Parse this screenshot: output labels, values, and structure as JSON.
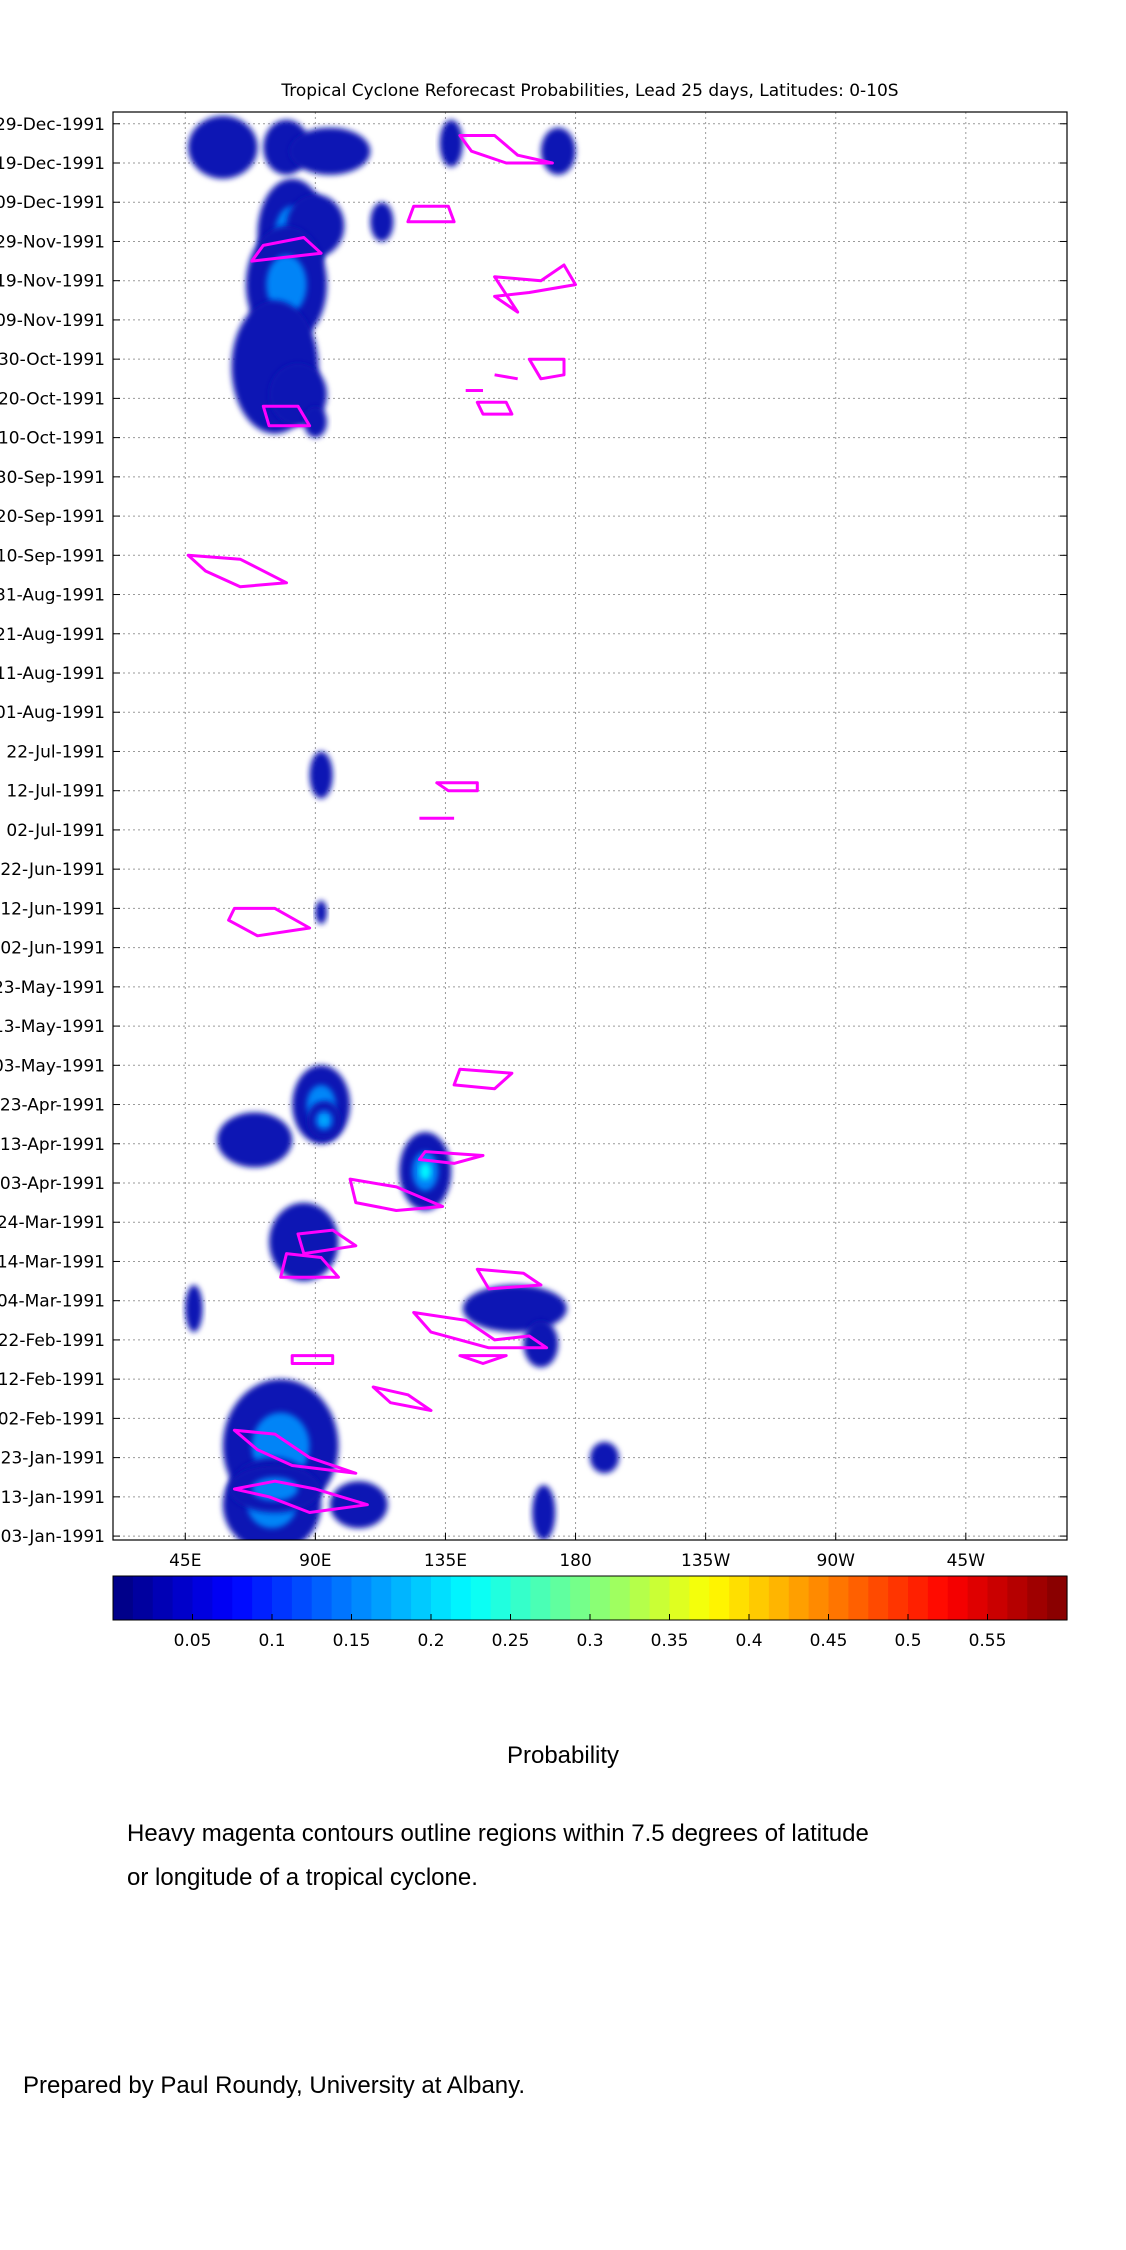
{
  "chart_data": {
    "type": "heatmap",
    "title": "Tropical Cyclone Reforecast Probabilities, Lead 25 days, Latitudes: 0-10S",
    "x_ticks": [
      "45E",
      "90E",
      "135E",
      "180",
      "135W",
      "90W",
      "45W"
    ],
    "x_tick_lon": [
      45,
      90,
      135,
      180,
      225,
      270,
      315
    ],
    "xlim": [
      20,
      350
    ],
    "y_ticks": [
      "29-Dec-1991",
      "19-Dec-1991",
      "09-Dec-1991",
      "29-Nov-1991",
      "19-Nov-1991",
      "09-Nov-1991",
      "30-Oct-1991",
      "20-Oct-1991",
      "10-Oct-1991",
      "30-Sep-1991",
      "20-Sep-1991",
      "10-Sep-1991",
      "31-Aug-1991",
      "21-Aug-1991",
      "11-Aug-1991",
      "01-Aug-1991",
      "22-Jul-1991",
      "12-Jul-1991",
      "02-Jul-1991",
      "22-Jun-1991",
      "12-Jun-1991",
      "02-Jun-1991",
      "23-May-1991",
      "13-May-1991",
      "03-May-1991",
      "23-Apr-1991",
      "13-Apr-1991",
      "03-Apr-1991",
      "24-Mar-1991",
      "14-Mar-1991",
      "04-Mar-1991",
      "22-Feb-1991",
      "12-Feb-1991",
      "02-Feb-1991",
      "23-Jan-1991",
      "13-Jan-1991",
      "03-Jan-1991"
    ],
    "ylim": [
      "02-Jan-1991",
      "01-Jan-1992"
    ],
    "grid": true,
    "colorbar": {
      "label": "Probability",
      "ticks": [
        "0.05",
        "0.1",
        "0.15",
        "0.2",
        "0.25",
        "0.3",
        "0.35",
        "0.4",
        "0.45",
        "0.5",
        "0.55"
      ],
      "range": [
        0,
        0.6
      ],
      "colormap": "jet"
    },
    "probability_regions": [
      {
        "lon": 58,
        "day": 356,
        "dlon": 12,
        "ddays": 8,
        "peak": 0.07
      },
      {
        "lon": 80,
        "day": 356,
        "dlon": 8,
        "ddays": 7,
        "peak": 0.06
      },
      {
        "lon": 95,
        "day": 355,
        "dlon": 14,
        "ddays": 6,
        "peak": 0.05
      },
      {
        "lon": 137,
        "day": 357,
        "dlon": 4,
        "ddays": 6,
        "peak": 0.04
      },
      {
        "lon": 174,
        "day": 355,
        "dlon": 6,
        "ddays": 6,
        "peak": 0.05
      },
      {
        "lon": 82,
        "day": 334,
        "dlon": 12,
        "ddays": 14,
        "peak": 0.1
      },
      {
        "lon": 90,
        "day": 336,
        "dlon": 10,
        "ddays": 8,
        "peak": 0.08
      },
      {
        "lon": 80,
        "day": 321,
        "dlon": 14,
        "ddays": 15,
        "peak": 0.14
      },
      {
        "lon": 76,
        "day": 300,
        "dlon": 15,
        "ddays": 17,
        "peak": 0.08
      },
      {
        "lon": 84,
        "day": 293,
        "dlon": 10,
        "ddays": 8,
        "peak": 0.06
      },
      {
        "lon": 90,
        "day": 286,
        "dlon": 4,
        "ddays": 4,
        "peak": 0.05
      },
      {
        "lon": 113,
        "day": 337,
        "dlon": 4,
        "ddays": 5,
        "peak": 0.05
      },
      {
        "lon": 92,
        "day": 196,
        "dlon": 4,
        "ddays": 6,
        "peak": 0.05
      },
      {
        "lon": 92,
        "day": 161,
        "dlon": 2,
        "ddays": 3,
        "peak": 0.05
      },
      {
        "lon": 69,
        "day": 103,
        "dlon": 13,
        "ddays": 7,
        "peak": 0.06
      },
      {
        "lon": 92,
        "day": 112,
        "dlon": 10,
        "ddays": 10,
        "peak": 0.16
      },
      {
        "lon": 93,
        "day": 108,
        "dlon": 6,
        "ddays": 5,
        "peak": 0.18
      },
      {
        "lon": 128,
        "day": 95,
        "dlon": 9,
        "ddays": 10,
        "peak": 0.22
      },
      {
        "lon": 86,
        "day": 77,
        "dlon": 12,
        "ddays": 10,
        "peak": 0.08
      },
      {
        "lon": 159,
        "day": 60,
        "dlon": 18,
        "ddays": 6,
        "peak": 0.07
      },
      {
        "lon": 168,
        "day": 51,
        "dlon": 6,
        "ddays": 6,
        "peak": 0.05
      },
      {
        "lon": 48,
        "day": 60,
        "dlon": 3,
        "ddays": 6,
        "peak": 0.05
      },
      {
        "lon": 78,
        "day": 25,
        "dlon": 20,
        "ddays": 17,
        "peak": 0.1
      },
      {
        "lon": 75,
        "day": 10,
        "dlon": 17,
        "ddays": 12,
        "peak": 0.14
      },
      {
        "lon": 76,
        "day": 14,
        "dlon": 16,
        "ddays": 6,
        "peak": 0.12
      },
      {
        "lon": 105,
        "day": 10,
        "dlon": 10,
        "ddays": 6,
        "peak": 0.06
      },
      {
        "lon": 169,
        "day": 8,
        "dlon": 4,
        "ddays": 7,
        "peak": 0.05
      },
      {
        "lon": 190,
        "day": 22,
        "dlon": 5,
        "ddays": 4,
        "peak": 0.06
      }
    ],
    "cyclone_contours": [
      [
        [
          140,
          359
        ],
        [
          152,
          359
        ],
        [
          160,
          354
        ],
        [
          172,
          352
        ],
        [
          156,
          352
        ],
        [
          144,
          355
        ]
      ],
      [
        [
          124,
          341
        ],
        [
          136,
          341
        ],
        [
          138,
          337
        ],
        [
          122,
          337
        ]
      ],
      [
        [
          72,
          331
        ],
        [
          86,
          333
        ],
        [
          92,
          329
        ],
        [
          68,
          327
        ]
      ],
      [
        [
          152,
          323
        ],
        [
          168,
          322
        ],
        [
          176,
          326
        ],
        [
          180,
          321
        ],
        [
          164,
          319
        ],
        [
          152,
          318
        ],
        [
          160,
          314
        ]
      ],
      [
        [
          164,
          302
        ],
        [
          176,
          302
        ],
        [
          176,
          298
        ],
        [
          168,
          297
        ]
      ],
      [
        [
          152,
          298
        ],
        [
          160,
          297
        ]
      ],
      [
        [
          142,
          294
        ],
        [
          148,
          294
        ]
      ],
      [
        [
          146,
          291
        ],
        [
          156,
          291
        ],
        [
          158,
          288
        ],
        [
          148,
          288
        ]
      ],
      [
        [
          72,
          290
        ],
        [
          84,
          290
        ],
        [
          88,
          285
        ],
        [
          74,
          285
        ]
      ],
      [
        [
          46,
          252
        ],
        [
          64,
          251
        ],
        [
          80,
          245
        ],
        [
          64,
          244
        ],
        [
          52,
          248
        ]
      ],
      [
        [
          132,
          194
        ],
        [
          146,
          194
        ],
        [
          146,
          192
        ],
        [
          136,
          192
        ]
      ],
      [
        [
          126,
          185
        ],
        [
          138,
          185
        ]
      ],
      [
        [
          62,
          162
        ],
        [
          76,
          162
        ],
        [
          88,
          157
        ],
        [
          70,
          155
        ],
        [
          60,
          159
        ]
      ],
      [
        [
          140,
          121
        ],
        [
          158,
          120
        ],
        [
          152,
          116
        ],
        [
          138,
          117
        ]
      ],
      [
        [
          128,
          100
        ],
        [
          148,
          99
        ],
        [
          138,
          97
        ],
        [
          126,
          98
        ]
      ],
      [
        [
          102,
          93
        ],
        [
          118,
          91
        ],
        [
          134,
          86
        ],
        [
          118,
          85
        ],
        [
          104,
          87
        ]
      ],
      [
        [
          84,
          79
        ],
        [
          96,
          80
        ],
        [
          104,
          76
        ],
        [
          86,
          74
        ]
      ],
      [
        [
          80,
          74
        ],
        [
          92,
          73
        ],
        [
          98,
          68
        ],
        [
          78,
          68
        ]
      ],
      [
        [
          146,
          70
        ],
        [
          162,
          69
        ],
        [
          168,
          66
        ],
        [
          150,
          65
        ]
      ],
      [
        [
          124,
          59
        ],
        [
          142,
          57
        ],
        [
          152,
          52
        ],
        [
          164,
          53
        ],
        [
          170,
          50
        ],
        [
          150,
          50
        ],
        [
          130,
          54
        ]
      ],
      [
        [
          140,
          48
        ],
        [
          156,
          48
        ],
        [
          148,
          46
        ]
      ],
      [
        [
          82,
          48
        ],
        [
          96,
          48
        ],
        [
          96,
          46
        ],
        [
          82,
          46
        ]
      ],
      [
        [
          110,
          40
        ],
        [
          122,
          38
        ],
        [
          130,
          34
        ],
        [
          116,
          36
        ]
      ],
      [
        [
          62,
          29
        ],
        [
          76,
          28
        ],
        [
          88,
          22
        ],
        [
          104,
          18
        ],
        [
          82,
          20
        ],
        [
          70,
          24
        ]
      ],
      [
        [
          62,
          14
        ],
        [
          74,
          12
        ],
        [
          88,
          8
        ],
        [
          108,
          10
        ],
        [
          90,
          14
        ],
        [
          76,
          16
        ]
      ]
    ]
  },
  "figure": {
    "colorbar_label": "Probability",
    "note_line_1": "Heavy magenta contours outline regions within 7.5 degrees of latitude",
    "note_line_2": "or longitude of a tropical cyclone.",
    "credit": "Prepared by Paul Roundy, University at Albany."
  }
}
